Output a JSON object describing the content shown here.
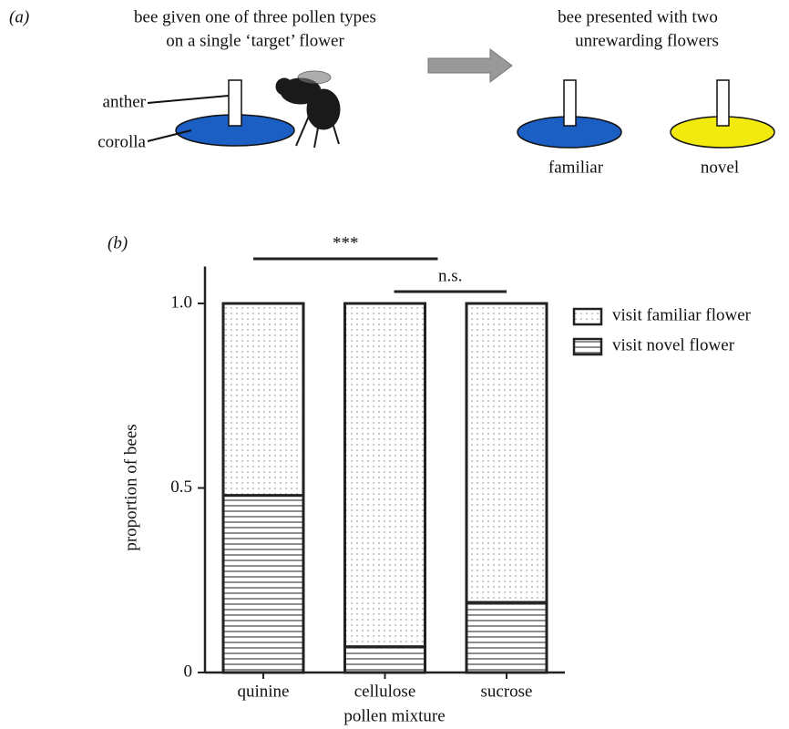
{
  "panel_a": {
    "label": "(a)",
    "left_caption": [
      "bee given one of three pollen types",
      "on a single ‘target’ flower"
    ],
    "anther": "anther",
    "corolla": "corolla",
    "right_caption": [
      "bee presented with two",
      "unrewarding flowers"
    ],
    "familiar": "familiar",
    "novel": "novel"
  },
  "chart_data": {
    "type": "stacked_bar",
    "panel_label": "(b)",
    "categories": [
      "quinine",
      "cellulose",
      "sucrose"
    ],
    "series": [
      {
        "name": "visit novel flower",
        "pattern": "lines",
        "color": "#222222",
        "values": [
          0.48,
          0.07,
          0.19
        ]
      },
      {
        "name": "visit familiar flower",
        "pattern": "dots",
        "color": "#222222",
        "values": [
          0.52,
          0.93,
          0.81
        ]
      }
    ],
    "xlabel": "pollen mixture",
    "ylabel": "proportion of bees",
    "ylim": [
      0,
      1.1
    ],
    "yticks": [
      0,
      0.5,
      {
        "value": 1,
        "label": "1.0"
      }
    ],
    "annotations": [
      {
        "text": "***",
        "from": 0,
        "to": 1
      },
      {
        "text": "n.s.",
        "from": 1,
        "to": 2
      }
    ]
  }
}
